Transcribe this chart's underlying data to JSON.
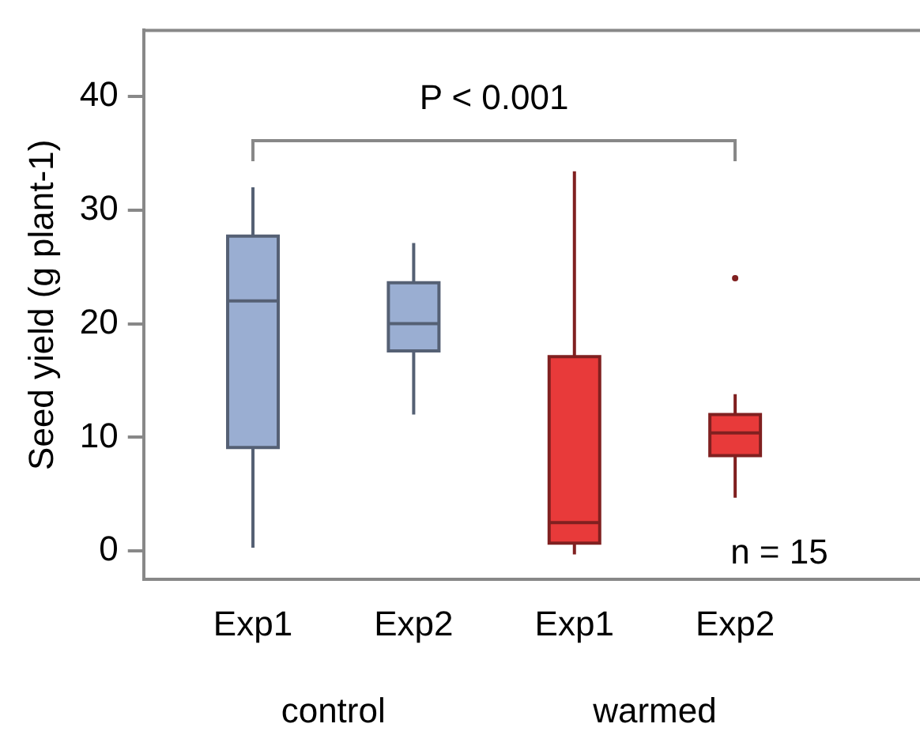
{
  "chart_data": {
    "type": "box",
    "ylabel": "Seed yield (g plant-1)",
    "categories": [
      "Exp1",
      "Exp2",
      "Exp1",
      "Exp2"
    ],
    "boxes": [
      {
        "low": 0.3,
        "q1": 9.1,
        "median": 22.0,
        "q3": 27.7,
        "high": 32.0
      },
      {
        "low": 12.0,
        "q1": 17.6,
        "median": 20.0,
        "q3": 23.6,
        "high": 27.1
      },
      {
        "low": -0.3,
        "q1": 0.7,
        "median": 2.5,
        "q3": 17.1,
        "high": 33.4
      },
      {
        "low": 4.7,
        "q1": 8.4,
        "median": 10.4,
        "q3": 12.0,
        "high": 13.8,
        "outliers": [
          24.0
        ]
      }
    ],
    "colors": [
      "#9aaed2",
      "#9aaed2",
      "#e83a3a",
      "#e83a3a"
    ],
    "ylim": [
      -2.5,
      45.8
    ],
    "yticks": [
      0,
      10,
      20,
      30,
      40
    ],
    "grid": false,
    "annotations": [
      "P < 0.001",
      "n = 15",
      "control",
      "warmed"
    ]
  }
}
